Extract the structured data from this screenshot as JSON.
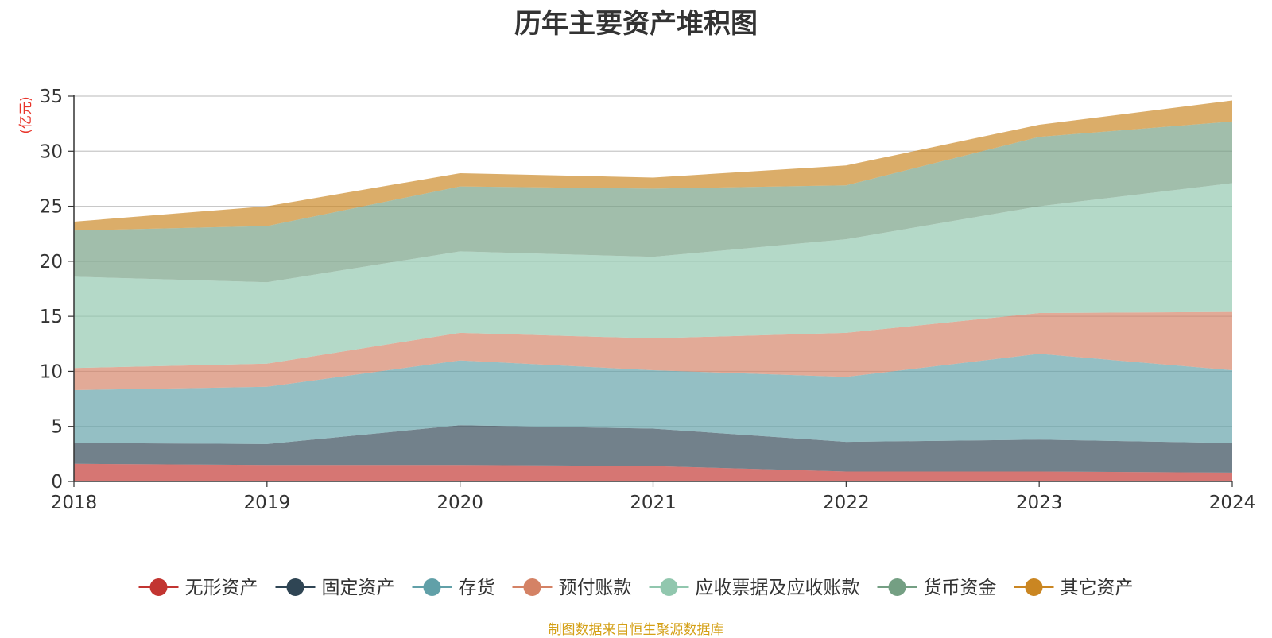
{
  "chart_data": {
    "type": "area",
    "stacked": true,
    "title": "历年主要资产堆积图",
    "ylabel": "(亿元)",
    "xlabel": "",
    "x": [
      "2018",
      "2019",
      "2020",
      "2021",
      "2022",
      "2023",
      "2024"
    ],
    "ylim": [
      0,
      35
    ],
    "yticks": [
      0,
      5,
      10,
      15,
      20,
      25,
      30,
      35
    ],
    "grid": true,
    "legend_position": "bottom",
    "series": [
      {
        "name": "无形资产",
        "color": "#c23531",
        "values": [
          1.6,
          1.5,
          1.5,
          1.4,
          0.9,
          0.9,
          0.8
        ]
      },
      {
        "name": "固定资产",
        "color": "#2f4554",
        "values": [
          1.9,
          1.9,
          3.6,
          3.4,
          2.7,
          2.9,
          2.7
        ]
      },
      {
        "name": "存货",
        "color": "#61a0a8",
        "values": [
          4.8,
          5.2,
          5.9,
          5.3,
          5.9,
          7.8,
          6.6
        ]
      },
      {
        "name": "预付账款",
        "color": "#d48265",
        "values": [
          2.0,
          2.1,
          2.5,
          2.9,
          4.0,
          3.7,
          5.3
        ]
      },
      {
        "name": "应收票据及应收账款",
        "color": "#91c7ae",
        "values": [
          8.3,
          7.4,
          7.4,
          7.4,
          8.5,
          9.7,
          11.7
        ]
      },
      {
        "name": "货币资金",
        "color": "#749f83",
        "values": [
          4.2,
          5.1,
          5.9,
          6.2,
          4.9,
          6.3,
          5.6
        ]
      },
      {
        "name": "其它资产",
        "color": "#ca8622",
        "values": [
          0.8,
          1.8,
          1.2,
          1.0,
          1.8,
          1.1,
          1.9
        ]
      }
    ]
  },
  "footnote": "制图数据来自恒生聚源数据库"
}
